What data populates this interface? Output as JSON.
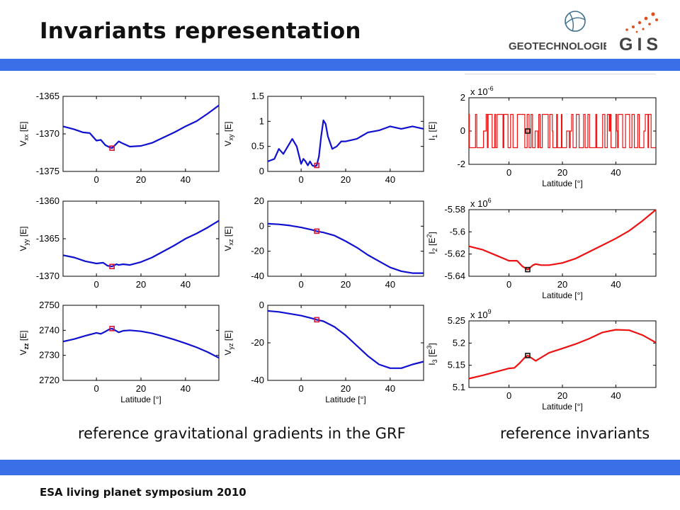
{
  "header": {
    "title": "Invariants representation"
  },
  "logos": {
    "geo_text": "GEOTECHNOLOGIEN",
    "gis_text": "GIS"
  },
  "captions": {
    "left": "reference gravitational gradients in the GRF",
    "right": "reference invariants"
  },
  "footer": {
    "text": "ESA living planet symposium 2010"
  },
  "colors": {
    "band": "#3b6fe8",
    "blue_series": "#1010d0",
    "red_series": "#ee1111",
    "marker_blue_panel": "#dd1133",
    "marker_red_panel": "#111111"
  },
  "chart_data": [
    {
      "id": "vxx",
      "type": "line",
      "ylabel": "V_xx [E]",
      "xlabel": "",
      "color": "blue",
      "xlim": [
        -15,
        55
      ],
      "ylim": [
        -1375,
        -1365
      ],
      "yticks": [
        "-1365",
        "-1370",
        "-1375"
      ],
      "yticks_values": [
        -1365,
        -1370,
        -1375
      ],
      "xticks": [
        "0",
        "20",
        "40"
      ],
      "xticks_values": [
        0,
        20,
        40
      ],
      "x": [
        -15,
        -10,
        -6,
        -3,
        0,
        2,
        4,
        6,
        7,
        8,
        10,
        12,
        15,
        20,
        25,
        30,
        35,
        40,
        45,
        50,
        55
      ],
      "y": [
        -1369.0,
        -1369.4,
        -1369.8,
        -1369.9,
        -1370.9,
        -1370.8,
        -1371.5,
        -1371.8,
        -1371.9,
        -1371.6,
        -1371.0,
        -1371.3,
        -1371.7,
        -1371.6,
        -1371.2,
        -1370.5,
        -1369.8,
        -1369.0,
        -1368.3,
        -1367.3,
        -1366.2
      ],
      "marker": [
        7,
        -1371.9
      ]
    },
    {
      "id": "vxy",
      "type": "line",
      "ylabel": "V_xy [E]",
      "xlabel": "",
      "color": "blue",
      "xlim": [
        -15,
        55
      ],
      "ylim": [
        0,
        1.5
      ],
      "yticks": [
        "1.5",
        "1",
        "0.5",
        "0"
      ],
      "yticks_values": [
        1.5,
        1,
        0.5,
        0
      ],
      "xticks": [
        "0",
        "20",
        "40"
      ],
      "xticks_values": [
        0,
        20,
        40
      ],
      "x": [
        -15,
        -12,
        -10,
        -8,
        -6,
        -4,
        -2,
        0,
        1,
        2,
        3,
        4,
        5,
        6,
        7,
        8,
        9,
        10,
        11,
        12,
        14,
        16,
        18,
        20,
        22,
        25,
        30,
        35,
        40,
        45,
        50,
        55
      ],
      "y": [
        0.2,
        0.25,
        0.45,
        0.35,
        0.5,
        0.65,
        0.5,
        0.15,
        0.25,
        0.2,
        0.12,
        0.2,
        0.12,
        0.1,
        0.12,
        0.3,
        0.7,
        1.02,
        0.95,
        0.7,
        0.45,
        0.5,
        0.6,
        0.6,
        0.62,
        0.65,
        0.78,
        0.82,
        0.9,
        0.85,
        0.9,
        0.85
      ],
      "marker": [
        7,
        0.12
      ]
    },
    {
      "id": "vyy",
      "type": "line",
      "ylabel": "V_yy [E]",
      "xlabel": "",
      "color": "blue",
      "xlim": [
        -15,
        55
      ],
      "ylim": [
        -1370,
        -1360
      ],
      "yticks": [
        "-1360",
        "-1365",
        "-1370"
      ],
      "yticks_values": [
        -1360,
        -1365,
        -1370
      ],
      "xticks": [
        "0",
        "20",
        "40"
      ],
      "xticks_values": [
        0,
        20,
        40
      ],
      "x": [
        -15,
        -10,
        -5,
        0,
        3,
        5,
        7,
        9,
        10,
        12,
        15,
        20,
        25,
        30,
        35,
        40,
        45,
        50,
        55
      ],
      "y": [
        -1367.2,
        -1367.5,
        -1368.0,
        -1368.3,
        -1368.2,
        -1368.6,
        -1368.7,
        -1368.4,
        -1368.5,
        -1368.4,
        -1368.5,
        -1368.1,
        -1367.5,
        -1366.7,
        -1365.9,
        -1365.0,
        -1364.3,
        -1363.5,
        -1362.6
      ],
      "marker": [
        7,
        -1368.7
      ]
    },
    {
      "id": "vxz",
      "type": "line",
      "ylabel": "V_xz [E]",
      "xlabel": "",
      "color": "blue",
      "xlim": [
        -15,
        55
      ],
      "ylim": [
        -40,
        20
      ],
      "yticks": [
        "20",
        "0",
        "-20",
        "-40"
      ],
      "yticks_values": [
        20,
        0,
        -20,
        -40
      ],
      "xticks": [
        "0",
        "20",
        "40"
      ],
      "xticks_values": [
        0,
        20,
        40
      ],
      "x": [
        -15,
        -10,
        -5,
        0,
        5,
        7,
        10,
        15,
        20,
        25,
        30,
        35,
        40,
        45,
        50,
        55
      ],
      "y": [
        2,
        1.5,
        0.5,
        -1,
        -3,
        -4,
        -5,
        -7.5,
        -12,
        -17,
        -23,
        -28,
        -33,
        -36,
        -37.5,
        -37.5
      ],
      "marker": [
        7,
        -4
      ]
    },
    {
      "id": "vzz",
      "type": "line",
      "ylabel": "V_zz [E]",
      "xlabel": "Latitude [°]",
      "color": "blue",
      "xlim": [
        -15,
        55
      ],
      "ylim": [
        2720,
        2750
      ],
      "yticks": [
        "2750",
        "2740",
        "2730",
        "2720"
      ],
      "yticks_values": [
        2750,
        2740,
        2730,
        2720
      ],
      "xticks": [
        "0",
        "20",
        "40"
      ],
      "xticks_values": [
        0,
        20,
        40
      ],
      "x": [
        -15,
        -10,
        -5,
        0,
        2,
        4,
        6,
        7,
        8,
        10,
        12,
        15,
        20,
        25,
        30,
        35,
        40,
        45,
        50,
        55
      ],
      "y": [
        2735.5,
        2736.5,
        2737.8,
        2739.0,
        2738.6,
        2739.5,
        2740.5,
        2740.7,
        2740.2,
        2739.2,
        2739.8,
        2740.0,
        2739.6,
        2738.8,
        2737.6,
        2736.3,
        2734.8,
        2733.2,
        2731.3,
        2729.0
      ],
      "marker": [
        7,
        2740.7
      ]
    },
    {
      "id": "vyz",
      "type": "line",
      "ylabel": "V_yz [E]",
      "xlabel": "Latitude [°]",
      "color": "blue",
      "xlim": [
        -15,
        55
      ],
      "ylim": [
        -40,
        0
      ],
      "yticks": [
        "0",
        "-20",
        "-40"
      ],
      "yticks_values": [
        0,
        -20,
        -40
      ],
      "xticks": [
        "0",
        "20",
        "40"
      ],
      "xticks_values": [
        0,
        20,
        40
      ],
      "x": [
        -15,
        -10,
        -5,
        0,
        5,
        7,
        10,
        15,
        20,
        25,
        30,
        35,
        40,
        45,
        50,
        55
      ],
      "y": [
        -3,
        -3.5,
        -4.5,
        -5.5,
        -7,
        -7.7,
        -8.5,
        -11.5,
        -16,
        -21.5,
        -27,
        -31.5,
        -33.5,
        -33.5,
        -31.5,
        -30
      ],
      "marker": [
        7,
        -7.7
      ]
    },
    {
      "id": "i1",
      "type": "line",
      "ylabel": "I_1 [E]",
      "xlabel": "Latitude [°]",
      "color": "red",
      "scale_note": "x 10^-6",
      "xlim": [
        -15,
        55
      ],
      "ylim": [
        -2,
        2
      ],
      "yticks": [
        "2",
        "0",
        "-2"
      ],
      "yticks_values": [
        2,
        0,
        -2
      ],
      "xticks": [
        "0",
        "20",
        "40"
      ],
      "xticks_values": [
        0,
        20,
        40
      ],
      "x": [
        -15,
        55
      ],
      "y": [
        1,
        -1
      ],
      "marker": [
        7,
        0
      ]
    },
    {
      "id": "i2",
      "type": "line",
      "ylabel": "I_2 [E^2]",
      "xlabel": "Latitude [°]",
      "color": "red",
      "scale_note": "x 10^6",
      "xlim": [
        -15,
        55
      ],
      "ylim": [
        -5.64,
        -5.58
      ],
      "yticks": [
        "-5.58",
        "-5.6",
        "-5.62",
        "-5.64"
      ],
      "yticks_values": [
        -5.58,
        -5.6,
        -5.62,
        -5.64
      ],
      "xticks": [
        "0",
        "20",
        "40"
      ],
      "xticks_values": [
        0,
        20,
        40
      ],
      "x": [
        -15,
        -10,
        -5,
        0,
        3,
        5,
        7,
        9,
        10,
        12,
        15,
        20,
        25,
        30,
        35,
        40,
        45,
        50,
        55
      ],
      "y": [
        -5.613,
        -5.616,
        -5.621,
        -5.626,
        -5.626,
        -5.631,
        -5.634,
        -5.63,
        -5.629,
        -5.63,
        -5.63,
        -5.628,
        -5.624,
        -5.618,
        -5.612,
        -5.606,
        -5.599,
        -5.59,
        -5.58
      ],
      "marker": [
        7,
        -5.634
      ]
    },
    {
      "id": "i3",
      "type": "line",
      "ylabel": "I_3 [E^3]",
      "xlabel": "Latitude [°]",
      "color": "red",
      "scale_note": "x 10^9",
      "xlim": [
        -15,
        55
      ],
      "ylim": [
        5.1,
        5.25
      ],
      "yticks": [
        "5.25",
        "5.2",
        "5.15",
        "5.1"
      ],
      "yticks_values": [
        5.25,
        5.2,
        5.15,
        5.1
      ],
      "xticks": [
        "0",
        "20",
        "40"
      ],
      "xticks_values": [
        0,
        20,
        40
      ],
      "x": [
        -15,
        -10,
        -5,
        0,
        2,
        4,
        6,
        7,
        8,
        10,
        15,
        20,
        25,
        30,
        35,
        40,
        45,
        50,
        55
      ],
      "y": [
        5.12,
        5.127,
        5.135,
        5.143,
        5.144,
        5.155,
        5.168,
        5.172,
        5.168,
        5.16,
        5.178,
        5.188,
        5.198,
        5.21,
        5.224,
        5.23,
        5.229,
        5.218,
        5.201
      ],
      "marker": [
        7,
        5.172
      ]
    }
  ]
}
